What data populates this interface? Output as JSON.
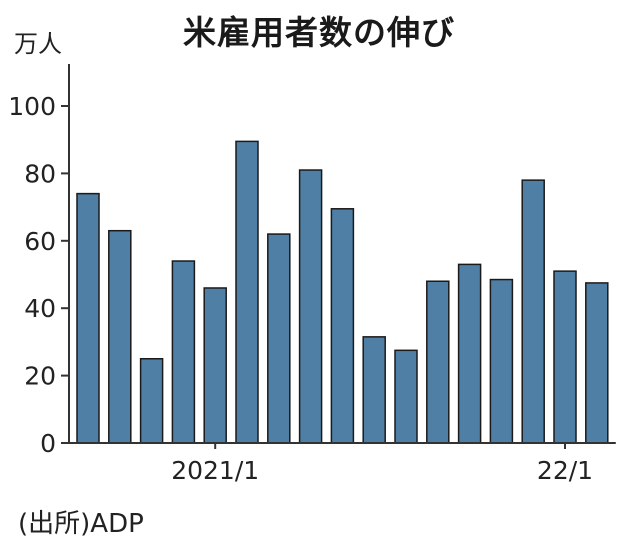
{
  "title": "米雇用者数の伸び",
  "source": "(出所)ADP",
  "chart_data": {
    "type": "bar",
    "title": "米雇用者数の伸び",
    "ylabel": "万人",
    "xlabel": "",
    "ylim": [
      0,
      110
    ],
    "yticks": [
      0,
      20,
      40,
      60,
      80,
      100
    ],
    "x_tick_labels": [
      {
        "index": 4,
        "label": "2021/1"
      },
      {
        "index": 15,
        "label": "22/1"
      }
    ],
    "values": [
      74,
      63,
      25,
      54,
      46,
      89.5,
      62,
      81,
      69.5,
      31.5,
      27.5,
      48,
      53,
      48.5,
      78,
      51,
      47.5
    ],
    "bar_color": "#4f7fa5",
    "grid": false
  }
}
